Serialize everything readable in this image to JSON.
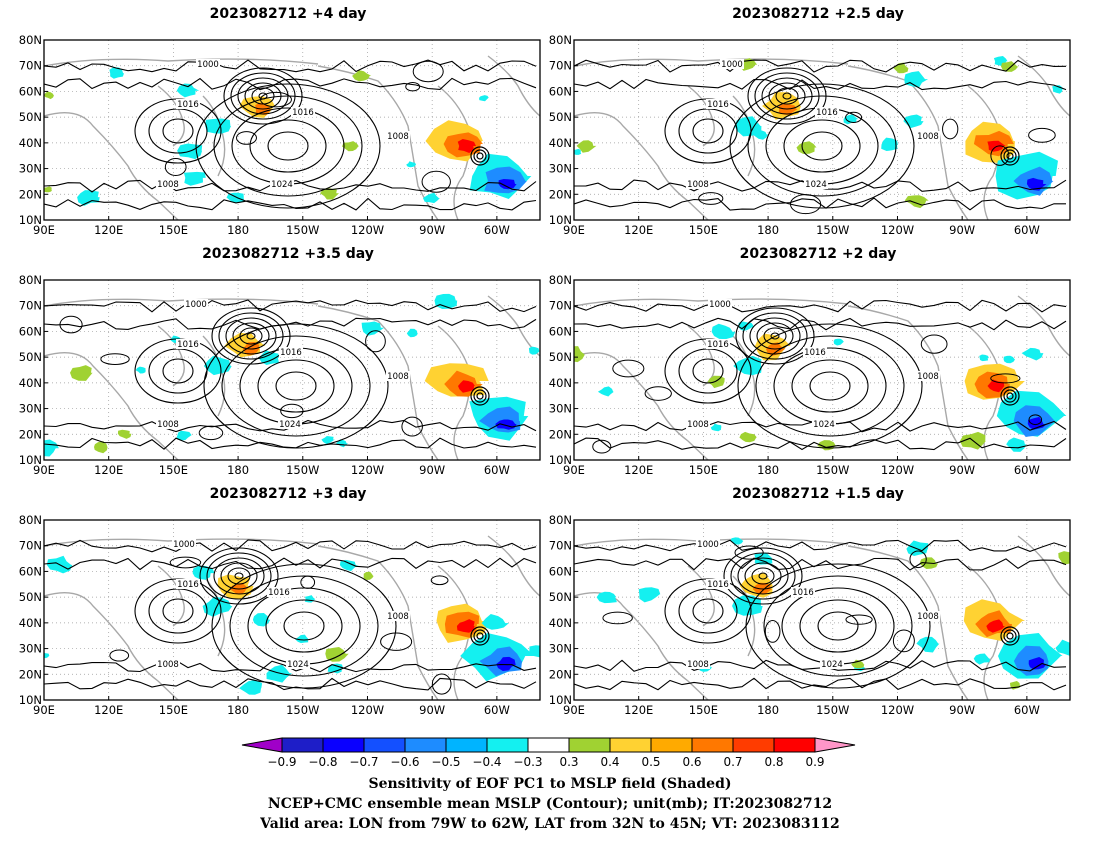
{
  "panels": [
    {
      "title": "2023082712  +4 day",
      "lead_days": 4
    },
    {
      "title": "2023082712  +2.5 day",
      "lead_days": 2.5
    },
    {
      "title": "2023082712  +3.5 day",
      "lead_days": 3.5
    },
    {
      "title": "2023082712  +2 day",
      "lead_days": 2
    },
    {
      "title": "2023082712  +3 day",
      "lead_days": 3
    },
    {
      "title": "2023082712  +1.5 day",
      "lead_days": 1.5
    }
  ],
  "map": {
    "lat_labels": [
      "80N",
      "70N",
      "60N",
      "50N",
      "40N",
      "30N",
      "20N",
      "10N"
    ],
    "lon_labels": [
      "90E",
      "120E",
      "150E",
      "180",
      "150W",
      "120W",
      "90W",
      "60W"
    ],
    "lat_range": [
      10,
      80
    ],
    "lon_range": [
      90,
      320
    ]
  },
  "contour_labels": [
    "1000",
    "1008",
    "1016",
    "1024"
  ],
  "colorbar": {
    "ticks": [
      "−0.9",
      "−0.8",
      "−0.7",
      "−0.6",
      "−0.5",
      "−0.4",
      "−0.3",
      "0.3",
      "0.4",
      "0.5",
      "0.6",
      "0.7",
      "0.8",
      "0.9"
    ],
    "colors": [
      "#a000c8",
      "#1e1ec8",
      "#0a00ff",
      "#1450ff",
      "#1e8cff",
      "#00b4ff",
      "#14f0f0",
      "#ffffff",
      "#a0d232",
      "#ffd232",
      "#ffaa00",
      "#ff7800",
      "#ff3c00",
      "#ff0000",
      "#ff96c8"
    ]
  },
  "footer": {
    "line1": "Sensitivity of EOF PC1 to MSLP field (Shaded)",
    "line2": "NCEP+CMC ensemble mean MSLP (Contour); unit(mb); IT:2023082712",
    "line3": "Valid area: LON from 79W to 62W, LAT from 32N to 45N; VT: 2023083112"
  }
}
